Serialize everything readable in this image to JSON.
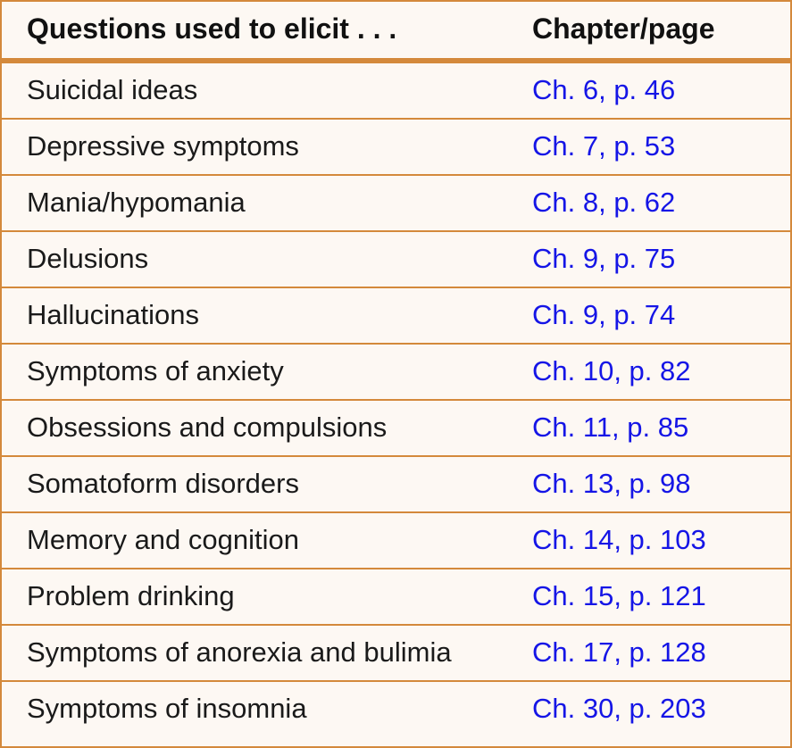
{
  "table": {
    "header": {
      "topic": "Questions used to elicit . . .",
      "reference": "Chapter/page"
    },
    "rows": [
      {
        "topic": "Suicidal ideas",
        "reference": "Ch. 6, p. 46"
      },
      {
        "topic": "Depressive symptoms",
        "reference": "Ch. 7, p. 53"
      },
      {
        "topic": "Mania/hypomania",
        "reference": "Ch. 8, p. 62"
      },
      {
        "topic": "Delusions",
        "reference": "Ch. 9, p. 75"
      },
      {
        "topic": "Hallucinations",
        "reference": "Ch. 9, p. 74"
      },
      {
        "topic": "Symptoms of anxiety",
        "reference": "Ch. 10, p. 82"
      },
      {
        "topic": "Obsessions and compulsions",
        "reference": "Ch. 11, p. 85"
      },
      {
        "topic": "Somatoform disorders",
        "reference": "Ch. 13, p. 98"
      },
      {
        "topic": "Memory and cognition",
        "reference": "Ch. 14, p. 103"
      },
      {
        "topic": "Problem drinking",
        "reference": "Ch. 15, p. 121"
      },
      {
        "topic": "Symptoms of anorexia and bulimia",
        "reference": "Ch. 17, p. 128"
      },
      {
        "topic": "Symptoms of insomnia",
        "reference": "Ch. 30, p. 203"
      }
    ]
  },
  "colors": {
    "border": "#d4893b",
    "background": "#fdf8f3",
    "link": "#1515e6",
    "text": "#1a1a1a"
  }
}
